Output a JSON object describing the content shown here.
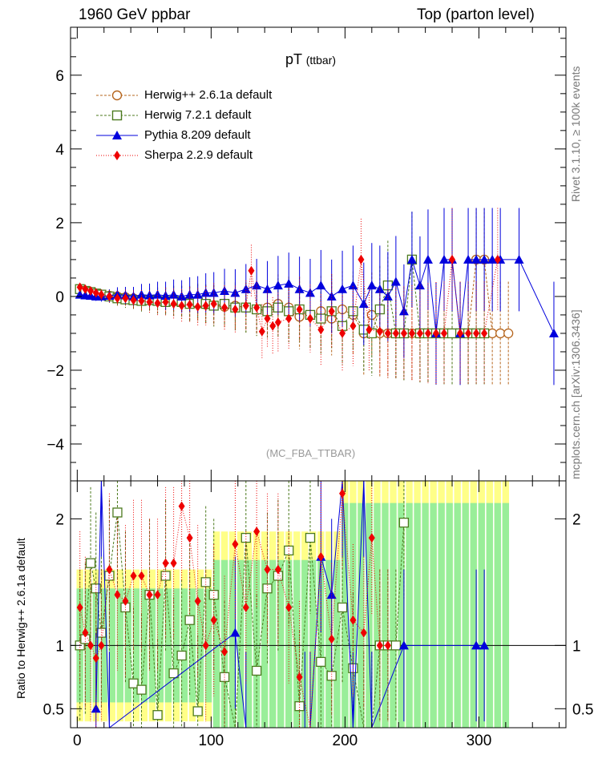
{
  "header": {
    "left": "1960 GeV ppbar",
    "right": "Top (parton level)"
  },
  "side_labels": {
    "rivet": "Rivet 3.1.10, ≥ 100k events",
    "mcplots": "mcplots.cern.ch [arXiv:1306.3436]"
  },
  "plot_title": {
    "main": "pT",
    "sub": "(ttbar)"
  },
  "watermark": "(MC_FBA_TTBAR)",
  "ratio_ylabel": "Ratio to Herwig++ 2.6.1a default",
  "legend": [
    {
      "label": "Herwig++ 2.6.1a default",
      "color": "#b5651d",
      "marker": "circle-open"
    },
    {
      "label": "Herwig 7.2.1 default",
      "color": "#4c7a1e",
      "marker": "square-open"
    },
    {
      "label": "Pythia 8.209 default",
      "color": "#0000dd",
      "marker": "triangle"
    },
    {
      "label": "Sherpa 2.2.9 default",
      "color": "#ee0000",
      "marker": "diamond"
    }
  ],
  "chart_data": [
    {
      "type": "scatter",
      "panel": "main",
      "title": "pT (ttbar)",
      "xlim": [
        -5,
        365
      ],
      "ylim": [
        -5,
        7.3
      ],
      "yticks": [
        -4,
        -2,
        0,
        2,
        4,
        6
      ],
      "xticks": [
        0,
        100,
        200,
        300
      ],
      "series": [
        {
          "name": "Herwig++ 2.6.1a default",
          "x": [
            2,
            6,
            10,
            14,
            18,
            24,
            30,
            36,
            42,
            48,
            54,
            60,
            66,
            72,
            78,
            84,
            90,
            96,
            102,
            110,
            118,
            126,
            134,
            142,
            150,
            158,
            166,
            174,
            182,
            190,
            198,
            206,
            214,
            220,
            226,
            232,
            238,
            244,
            250,
            256,
            262,
            268,
            274,
            280,
            286,
            292,
            298,
            304,
            310,
            316,
            322
          ],
          "y": [
            0.2,
            0.15,
            0.1,
            0.07,
            0.05,
            0.02,
            0.0,
            -0.02,
            -0.05,
            -0.07,
            -0.08,
            -0.1,
            -0.12,
            -0.12,
            -0.15,
            -0.18,
            -0.2,
            -0.22,
            -0.25,
            -0.28,
            -0.25,
            -0.3,
            -0.35,
            -0.3,
            -0.2,
            -0.3,
            -0.55,
            -0.5,
            -0.4,
            -0.6,
            -0.35,
            -0.5,
            -1,
            -0.5,
            -1,
            -1,
            -1,
            -1,
            -1,
            -1,
            -1,
            -1,
            -1,
            -1,
            -1,
            -1,
            1,
            1,
            -1,
            -1,
            -1
          ]
        },
        {
          "name": "Herwig 7.2.1 default",
          "x": [
            2,
            6,
            10,
            14,
            18,
            24,
            30,
            36,
            42,
            48,
            54,
            60,
            66,
            72,
            78,
            84,
            90,
            96,
            102,
            110,
            118,
            126,
            134,
            142,
            150,
            158,
            166,
            174,
            182,
            190,
            198,
            206,
            214,
            220,
            226,
            232,
            238,
            244,
            250,
            256,
            262,
            268,
            274,
            280,
            286,
            292,
            298,
            304
          ],
          "y": [
            0.2,
            0.15,
            0.12,
            0.08,
            0.05,
            0.0,
            -0.05,
            -0.08,
            -0.1,
            -0.12,
            -0.1,
            -0.12,
            -0.15,
            -0.12,
            -0.15,
            -0.2,
            -0.15,
            -0.2,
            -0.25,
            -0.2,
            -0.3,
            -0.3,
            -0.35,
            -0.4,
            -0.3,
            -0.4,
            -0.35,
            -0.5,
            -0.6,
            -0.4,
            -0.8,
            -0.4,
            -0.9,
            -1,
            -0.35,
            0.3,
            -1,
            -1,
            1,
            -1,
            -1,
            -1,
            -1,
            -1,
            -1,
            -1,
            -1,
            -1
          ]
        },
        {
          "name": "Pythia 8.209 default",
          "x": [
            2,
            6,
            10,
            14,
            18,
            24,
            30,
            36,
            42,
            48,
            54,
            60,
            66,
            72,
            78,
            84,
            90,
            96,
            102,
            110,
            118,
            126,
            134,
            142,
            150,
            158,
            166,
            174,
            182,
            190,
            198,
            206,
            214,
            220,
            226,
            232,
            238,
            244,
            250,
            256,
            262,
            268,
            274,
            280,
            286,
            292,
            298,
            304,
            310,
            316,
            330,
            356
          ],
          "y": [
            0.05,
            0.03,
            0.02,
            0.0,
            0.0,
            0.02,
            0.05,
            0.03,
            0.0,
            0.05,
            0.03,
            0.05,
            0.02,
            0.05,
            0.0,
            0.05,
            0.05,
            0.1,
            0.1,
            0.15,
            0.1,
            0.2,
            0.3,
            0.2,
            0.3,
            0.35,
            0.2,
            0.1,
            0.3,
            0.0,
            0.2,
            0.3,
            -0.2,
            0.3,
            0.2,
            0.0,
            0.4,
            -0.4,
            1,
            0.3,
            1,
            -1,
            1,
            1,
            -1,
            1,
            1,
            1,
            1,
            1,
            1,
            -1
          ]
        },
        {
          "name": "Sherpa 2.2.9 default",
          "x": [
            2,
            6,
            10,
            14,
            18,
            24,
            30,
            36,
            42,
            48,
            54,
            60,
            66,
            72,
            78,
            84,
            90,
            96,
            102,
            110,
            118,
            126,
            130,
            134,
            138,
            142,
            146,
            150,
            158,
            166,
            174,
            182,
            190,
            198,
            206,
            212,
            218,
            226,
            232,
            238,
            244,
            250,
            256,
            262,
            268,
            274,
            280,
            286,
            292,
            298,
            304,
            314
          ],
          "y": [
            0.25,
            0.2,
            0.15,
            0.1,
            0.05,
            0.0,
            -0.05,
            -0.05,
            -0.1,
            -0.12,
            -0.15,
            -0.18,
            -0.15,
            -0.2,
            -0.25,
            -0.22,
            -0.28,
            -0.25,
            -0.2,
            -0.3,
            -0.35,
            -0.25,
            0.7,
            -0.3,
            -0.95,
            -0.6,
            -0.8,
            -0.7,
            -0.6,
            -0.35,
            -0.6,
            -0.9,
            -0.4,
            -1,
            -0.8,
            1,
            -0.9,
            -0.95,
            -1,
            -1,
            -1,
            -1,
            -1,
            -1,
            -1,
            -1,
            1,
            -1,
            -1,
            -1,
            -1,
            1
          ]
        }
      ]
    },
    {
      "type": "scatter",
      "panel": "ratio",
      "ylabel": "Ratio to Herwig++ 2.6.1a default",
      "xlim": [
        -5,
        365
      ],
      "ylim": [
        0.35,
        2.3
      ],
      "yticks": [
        0.5,
        1,
        2
      ],
      "xticks": [
        0,
        100,
        200,
        300
      ],
      "series": [
        {
          "name": "Herwig 7.2.1 default",
          "x": [
            2,
            6,
            10,
            14,
            18,
            24,
            30,
            36,
            42,
            48,
            54,
            60,
            66,
            72,
            78,
            84,
            90,
            96,
            102,
            110,
            118,
            126,
            134,
            142,
            150,
            158,
            166,
            174,
            182,
            190,
            198,
            206,
            214,
            220,
            226,
            232,
            238,
            244
          ],
          "y": [
            1.0,
            1.05,
            1.65,
            1.45,
            1.1,
            1.55,
            2.05,
            1.3,
            0.7,
            0.65,
            1.4,
            0.45,
            1.55,
            0.78,
            0.92,
            1.2,
            0.48,
            1.5,
            1.4,
            0.75,
            0.35,
            1.85,
            0.8,
            1.45,
            1.55,
            1.75,
            0.52,
            1.85,
            0.87,
            0.76,
            1.3,
            0.82,
            0.35,
            0.35,
            1.0,
            1.0,
            1.0,
            1.97
          ]
        },
        {
          "name": "Pythia 8.209 default",
          "x": [
            14,
            18,
            24,
            118,
            126,
            170,
            174,
            182,
            190,
            198,
            206,
            214,
            220,
            244,
            298,
            304
          ],
          "y": [
            0.5,
            2.3,
            0.35,
            1.1,
            0.35,
            0.35,
            0.35,
            1.7,
            1.4,
            2.3,
            0.35,
            2.3,
            0.35,
            1.0,
            1.0,
            1.0
          ]
        },
        {
          "name": "Sherpa 2.2.9 default",
          "x": [
            2,
            6,
            10,
            14,
            18,
            24,
            30,
            36,
            42,
            48,
            54,
            60,
            66,
            72,
            78,
            84,
            90,
            96,
            102,
            110,
            118,
            126,
            134,
            142,
            150,
            158,
            166,
            174,
            182,
            190,
            198,
            206,
            214,
            220,
            226,
            232
          ],
          "y": [
            1.3,
            1.1,
            1.0,
            0.9,
            1.0,
            1.6,
            1.4,
            1.35,
            1.55,
            1.55,
            1.4,
            1.4,
            1.65,
            1.65,
            2.1,
            1.85,
            1.35,
            1.0,
            1.2,
            0.95,
            1.8,
            1.3,
            1.9,
            1.6,
            1.6,
            1.3,
            0.75,
            0.35,
            1.7,
            1.05,
            2.2,
            1.2,
            1.1,
            1.85,
            1.0,
            1.0
          ]
        }
      ]
    }
  ]
}
